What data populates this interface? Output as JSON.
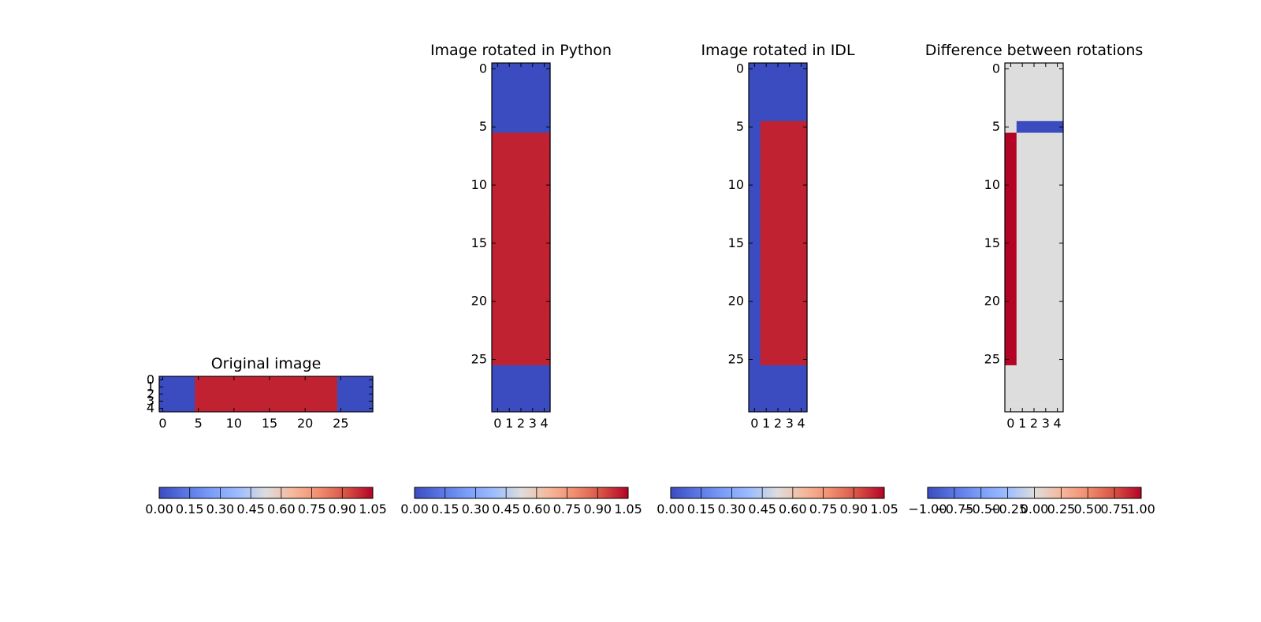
{
  "chart_data": [
    {
      "type": "heatmap",
      "title": "Original image",
      "shape": [
        5,
        30
      ],
      "xticks": [
        0,
        5,
        10,
        15,
        20,
        25
      ],
      "yticks": [
        0,
        1,
        2,
        3,
        4
      ],
      "xlim": [
        -0.5,
        29.5
      ],
      "ylim": [
        4.5,
        -0.5
      ],
      "values_description": "rows 0-4: columns 0-4 = 0, columns 5-24 = 1, columns 25-29 = 0",
      "regions": [
        {
          "rows": [
            0,
            4
          ],
          "cols": [
            0,
            4
          ],
          "value": 0
        },
        {
          "rows": [
            0,
            4
          ],
          "cols": [
            5,
            24
          ],
          "value": 1
        },
        {
          "rows": [
            0,
            4
          ],
          "cols": [
            25,
            29
          ],
          "value": 0
        }
      ],
      "colormap": "coolwarm",
      "colorbar": {
        "vmin": 0,
        "vmax": 1.05,
        "ticks": [
          "0.00",
          "0.15",
          "0.30",
          "0.45",
          "0.60",
          "0.75",
          "0.90",
          "1.05"
        ]
      }
    },
    {
      "type": "heatmap",
      "title": "Image rotated in Python",
      "shape": [
        30,
        5
      ],
      "xticks": [
        0,
        1,
        2,
        3,
        4
      ],
      "yticks": [
        0,
        5,
        10,
        15,
        20,
        25
      ],
      "xlim": [
        -0.5,
        4.5
      ],
      "ylim": [
        29.5,
        -0.5
      ],
      "regions": [
        {
          "rows": [
            0,
            5
          ],
          "cols": [
            0,
            4
          ],
          "value": 0
        },
        {
          "rows": [
            6,
            25
          ],
          "cols": [
            0,
            4
          ],
          "value": 1
        },
        {
          "rows": [
            26,
            29
          ],
          "cols": [
            0,
            4
          ],
          "value": 0
        }
      ],
      "colormap": "coolwarm",
      "colorbar": {
        "vmin": 0,
        "vmax": 1.05,
        "ticks": [
          "0.00",
          "0.15",
          "0.30",
          "0.45",
          "0.60",
          "0.75",
          "0.90",
          "1.05"
        ]
      }
    },
    {
      "type": "heatmap",
      "title": "Image rotated in IDL",
      "shape": [
        30,
        5
      ],
      "xticks": [
        0,
        1,
        2,
        3,
        4
      ],
      "yticks": [
        0,
        5,
        10,
        15,
        20,
        25
      ],
      "xlim": [
        -0.5,
        4.5
      ],
      "ylim": [
        29.5,
        -0.5
      ],
      "regions": [
        {
          "rows": [
            0,
            4
          ],
          "cols": [
            0,
            4
          ],
          "value": 0
        },
        {
          "rows": [
            5,
            25
          ],
          "cols": [
            0,
            0
          ],
          "value": 0
        },
        {
          "rows": [
            5,
            25
          ],
          "cols": [
            1,
            4
          ],
          "value": 1
        },
        {
          "rows": [
            26,
            29
          ],
          "cols": [
            0,
            4
          ],
          "value": 0
        }
      ],
      "colormap": "coolwarm",
      "colorbar": {
        "vmin": 0,
        "vmax": 1.05,
        "ticks": [
          "0.00",
          "0.15",
          "0.30",
          "0.45",
          "0.60",
          "0.75",
          "0.90",
          "1.05"
        ]
      }
    },
    {
      "type": "heatmap",
      "title": "Difference between rotations",
      "shape": [
        30,
        5
      ],
      "xticks": [
        0,
        1,
        2,
        3,
        4
      ],
      "yticks": [
        0,
        5,
        10,
        15,
        20,
        25
      ],
      "xlim": [
        -0.5,
        4.5
      ],
      "ylim": [
        29.5,
        -0.5
      ],
      "regions": [
        {
          "rows": [
            0,
            29
          ],
          "cols": [
            0,
            4
          ],
          "value": 0
        },
        {
          "rows": [
            5,
            5
          ],
          "cols": [
            1,
            4
          ],
          "value": -1
        },
        {
          "rows": [
            6,
            25
          ],
          "cols": [
            0,
            0
          ],
          "value": 1
        }
      ],
      "colormap": "coolwarm",
      "colorbar": {
        "vmin": -1,
        "vmax": 1,
        "ticks": [
          "−1.00",
          "−0.75",
          "−0.50",
          "−0.25",
          "0.00",
          "0.25",
          "0.50",
          "0.75",
          "1.00"
        ]
      }
    }
  ]
}
